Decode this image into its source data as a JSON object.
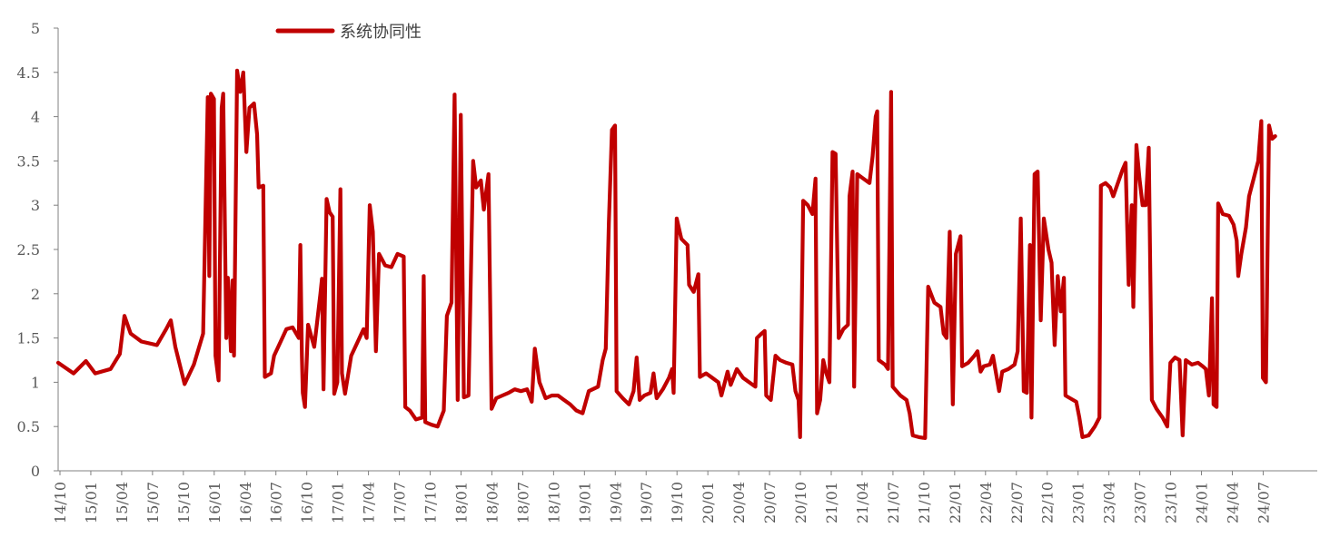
{
  "chart_data": {
    "type": "line",
    "series_color": "#c00000",
    "axis_color": "#808080",
    "legend_position": "top-left",
    "grid": false,
    "ylim": [
      0,
      5
    ],
    "yticks": [
      "0",
      "0.5",
      "1",
      "1.5",
      "2",
      "2.5",
      "3",
      "3.5",
      "4",
      "4.5",
      "5"
    ],
    "xtick_labels": [
      "14/10",
      "15/01",
      "15/04",
      "15/07",
      "15/10",
      "16/01",
      "16/04",
      "16/07",
      "16/10",
      "17/01",
      "17/04",
      "17/07",
      "17/10",
      "18/01",
      "18/04",
      "18/07",
      "18/10",
      "19/01",
      "19/04",
      "19/07",
      "19/10",
      "20/01",
      "20/04",
      "20/07",
      "20/10",
      "21/01",
      "21/04",
      "21/07",
      "21/10",
      "22/01",
      "22/04",
      "22/07",
      "22/10",
      "23/01",
      "23/04",
      "23/07",
      "23/10",
      "24/01",
      "24/04",
      "24/07"
    ],
    "series": [
      {
        "name": "系统协同性",
        "points": [
          [
            0,
            1.22
          ],
          [
            0.5,
            1.1
          ],
          [
            0.9,
            1.24
          ],
          [
            1.2,
            1.1
          ],
          [
            1.7,
            1.15
          ],
          [
            2.0,
            1.32
          ],
          [
            2.15,
            1.75
          ],
          [
            2.35,
            1.55
          ],
          [
            2.7,
            1.46
          ],
          [
            3.2,
            1.42
          ],
          [
            3.5,
            1.6
          ],
          [
            3.65,
            1.7
          ],
          [
            3.8,
            1.4
          ],
          [
            4.1,
            0.98
          ],
          [
            4.4,
            1.2
          ],
          [
            4.7,
            1.55
          ],
          [
            4.85,
            4.22
          ],
          [
            4.9,
            2.2
          ],
          [
            4.95,
            4.26
          ],
          [
            5.05,
            4.2
          ],
          [
            5.1,
            1.3
          ],
          [
            5.2,
            1.02
          ],
          [
            5.3,
            4.1
          ],
          [
            5.35,
            4.26
          ],
          [
            5.45,
            1.5
          ],
          [
            5.5,
            2.18
          ],
          [
            5.6,
            1.35
          ],
          [
            5.65,
            2.15
          ],
          [
            5.7,
            1.3
          ],
          [
            5.8,
            4.52
          ],
          [
            5.9,
            4.28
          ],
          [
            6.0,
            4.5
          ],
          [
            6.1,
            3.6
          ],
          [
            6.2,
            4.1
          ],
          [
            6.35,
            4.15
          ],
          [
            6.45,
            3.8
          ],
          [
            6.5,
            3.2
          ],
          [
            6.65,
            3.22
          ],
          [
            6.7,
            1.06
          ],
          [
            6.9,
            1.1
          ],
          [
            7.0,
            1.3
          ],
          [
            7.2,
            1.45
          ],
          [
            7.4,
            1.6
          ],
          [
            7.6,
            1.62
          ],
          [
            7.8,
            1.5
          ],
          [
            7.85,
            2.55
          ],
          [
            7.9,
            1.3
          ],
          [
            7.93,
            0.88
          ],
          [
            8.0,
            0.72
          ],
          [
            8.1,
            1.65
          ],
          [
            8.3,
            1.4
          ],
          [
            8.5,
            2.0
          ],
          [
            8.55,
            2.17
          ],
          [
            8.6,
            0.92
          ],
          [
            8.7,
            3.07
          ],
          [
            8.8,
            2.92
          ],
          [
            8.9,
            2.87
          ],
          [
            8.95,
            0.87
          ],
          [
            9.05,
            1.0
          ],
          [
            9.15,
            3.18
          ],
          [
            9.2,
            1.1
          ],
          [
            9.3,
            0.87
          ],
          [
            9.5,
            1.3
          ],
          [
            9.7,
            1.45
          ],
          [
            9.9,
            1.6
          ],
          [
            10.0,
            1.5
          ],
          [
            10.1,
            3.0
          ],
          [
            10.2,
            2.7
          ],
          [
            10.3,
            1.35
          ],
          [
            10.4,
            2.45
          ],
          [
            10.6,
            2.32
          ],
          [
            10.8,
            2.3
          ],
          [
            11.0,
            2.45
          ],
          [
            11.2,
            2.42
          ],
          [
            11.25,
            0.72
          ],
          [
            11.4,
            0.68
          ],
          [
            11.6,
            0.58
          ],
          [
            11.8,
            0.6
          ],
          [
            11.85,
            2.2
          ],
          [
            11.9,
            0.55
          ],
          [
            12.1,
            0.52
          ],
          [
            12.3,
            0.5
          ],
          [
            12.5,
            0.68
          ],
          [
            12.6,
            1.75
          ],
          [
            12.75,
            1.9
          ],
          [
            12.85,
            4.25
          ],
          [
            12.95,
            0.8
          ],
          [
            13.05,
            4.02
          ],
          [
            13.15,
            0.83
          ],
          [
            13.3,
            0.85
          ],
          [
            13.45,
            3.5
          ],
          [
            13.55,
            3.2
          ],
          [
            13.7,
            3.28
          ],
          [
            13.8,
            2.95
          ],
          [
            13.95,
            3.35
          ],
          [
            14.05,
            0.7
          ],
          [
            14.2,
            0.82
          ],
          [
            14.4,
            0.85
          ],
          [
            14.6,
            0.88
          ],
          [
            14.8,
            0.92
          ],
          [
            15.0,
            0.9
          ],
          [
            15.2,
            0.92
          ],
          [
            15.35,
            0.78
          ],
          [
            15.45,
            1.38
          ],
          [
            15.6,
            1.0
          ],
          [
            15.8,
            0.82
          ],
          [
            16.0,
            0.85
          ],
          [
            16.2,
            0.85
          ],
          [
            16.4,
            0.8
          ],
          [
            16.6,
            0.75
          ],
          [
            16.8,
            0.68
          ],
          [
            17.0,
            0.65
          ],
          [
            17.2,
            0.9
          ],
          [
            17.5,
            0.95
          ],
          [
            17.65,
            1.25
          ],
          [
            17.75,
            1.38
          ],
          [
            17.85,
            2.8
          ],
          [
            17.95,
            3.85
          ],
          [
            18.05,
            3.9
          ],
          [
            18.1,
            0.9
          ],
          [
            18.3,
            0.82
          ],
          [
            18.5,
            0.75
          ],
          [
            18.65,
            0.9
          ],
          [
            18.75,
            1.28
          ],
          [
            18.85,
            0.8
          ],
          [
            19.0,
            0.85
          ],
          [
            19.2,
            0.88
          ],
          [
            19.3,
            1.1
          ],
          [
            19.4,
            0.82
          ],
          [
            19.6,
            0.92
          ],
          [
            19.8,
            1.05
          ],
          [
            19.9,
            1.15
          ],
          [
            19.95,
            0.88
          ],
          [
            20.05,
            2.85
          ],
          [
            20.2,
            2.62
          ],
          [
            20.4,
            2.55
          ],
          [
            20.45,
            2.1
          ],
          [
            20.6,
            2.02
          ],
          [
            20.75,
            2.22
          ],
          [
            20.8,
            1.06
          ],
          [
            21.0,
            1.1
          ],
          [
            21.2,
            1.05
          ],
          [
            21.4,
            1.0
          ],
          [
            21.5,
            0.85
          ],
          [
            21.7,
            1.12
          ],
          [
            21.8,
            0.97
          ],
          [
            22.0,
            1.15
          ],
          [
            22.2,
            1.05
          ],
          [
            22.4,
            1.0
          ],
          [
            22.6,
            0.95
          ],
          [
            22.65,
            1.5
          ],
          [
            22.8,
            1.55
          ],
          [
            22.9,
            1.58
          ],
          [
            22.95,
            0.85
          ],
          [
            23.1,
            0.8
          ],
          [
            23.25,
            1.3
          ],
          [
            23.4,
            1.25
          ],
          [
            23.6,
            1.22
          ],
          [
            23.8,
            1.2
          ],
          [
            23.9,
            0.9
          ],
          [
            24.0,
            0.8
          ],
          [
            24.05,
            0.38
          ],
          [
            24.15,
            3.05
          ],
          [
            24.3,
            3.0
          ],
          [
            24.45,
            2.9
          ],
          [
            24.55,
            3.3
          ],
          [
            24.6,
            0.65
          ],
          [
            24.7,
            0.8
          ],
          [
            24.8,
            1.25
          ],
          [
            24.9,
            1.1
          ],
          [
            25.0,
            1.0
          ],
          [
            25.1,
            3.6
          ],
          [
            25.2,
            3.58
          ],
          [
            25.3,
            1.5
          ],
          [
            25.45,
            1.6
          ],
          [
            25.6,
            1.65
          ],
          [
            25.65,
            3.1
          ],
          [
            25.75,
            3.38
          ],
          [
            25.8,
            0.95
          ],
          [
            25.9,
            3.35
          ],
          [
            26.1,
            3.3
          ],
          [
            26.3,
            3.25
          ],
          [
            26.4,
            3.55
          ],
          [
            26.5,
            4.0
          ],
          [
            26.55,
            4.06
          ],
          [
            26.6,
            1.25
          ],
          [
            26.8,
            1.2
          ],
          [
            26.9,
            1.15
          ],
          [
            27.0,
            4.28
          ],
          [
            27.05,
            0.95
          ],
          [
            27.3,
            0.85
          ],
          [
            27.5,
            0.8
          ],
          [
            27.6,
            0.65
          ],
          [
            27.7,
            0.4
          ],
          [
            27.9,
            0.38
          ],
          [
            28.1,
            0.37
          ],
          [
            28.2,
            2.08
          ],
          [
            28.4,
            1.9
          ],
          [
            28.6,
            1.85
          ],
          [
            28.7,
            1.55
          ],
          [
            28.8,
            1.5
          ],
          [
            28.9,
            2.7
          ],
          [
            29.0,
            0.75
          ],
          [
            29.1,
            2.45
          ],
          [
            29.25,
            2.65
          ],
          [
            29.3,
            1.18
          ],
          [
            29.5,
            1.22
          ],
          [
            29.7,
            1.3
          ],
          [
            29.8,
            1.35
          ],
          [
            29.9,
            1.12
          ],
          [
            30.0,
            1.18
          ],
          [
            30.2,
            1.2
          ],
          [
            30.3,
            1.3
          ],
          [
            30.4,
            1.1
          ],
          [
            30.5,
            0.9
          ],
          [
            30.6,
            1.12
          ],
          [
            30.8,
            1.15
          ],
          [
            31.0,
            1.2
          ],
          [
            31.1,
            1.35
          ],
          [
            31.2,
            2.85
          ],
          [
            31.3,
            0.9
          ],
          [
            31.4,
            0.88
          ],
          [
            31.5,
            2.55
          ],
          [
            31.55,
            0.6
          ],
          [
            31.65,
            3.35
          ],
          [
            31.75,
            3.38
          ],
          [
            31.85,
            1.7
          ],
          [
            31.95,
            2.85
          ],
          [
            32.1,
            2.5
          ],
          [
            32.2,
            2.35
          ],
          [
            32.3,
            1.42
          ],
          [
            32.4,
            2.2
          ],
          [
            32.5,
            1.8
          ],
          [
            32.6,
            2.18
          ],
          [
            32.65,
            0.85
          ],
          [
            32.8,
            0.82
          ],
          [
            33.0,
            0.78
          ],
          [
            33.1,
            0.6
          ],
          [
            33.2,
            0.38
          ],
          [
            33.4,
            0.4
          ],
          [
            33.6,
            0.5
          ],
          [
            33.75,
            0.6
          ],
          [
            33.8,
            3.22
          ],
          [
            33.95,
            3.25
          ],
          [
            34.1,
            3.2
          ],
          [
            34.2,
            3.1
          ],
          [
            34.35,
            3.25
          ],
          [
            34.5,
            3.4
          ],
          [
            34.6,
            3.48
          ],
          [
            34.7,
            2.1
          ],
          [
            34.8,
            3.0
          ],
          [
            34.85,
            1.85
          ],
          [
            34.95,
            3.68
          ],
          [
            35.05,
            3.3
          ],
          [
            35.15,
            3.0
          ],
          [
            35.25,
            3.0
          ],
          [
            35.35,
            3.65
          ],
          [
            35.45,
            0.8
          ],
          [
            35.6,
            0.7
          ],
          [
            35.8,
            0.6
          ],
          [
            35.95,
            0.5
          ],
          [
            36.05,
            1.22
          ],
          [
            36.2,
            1.28
          ],
          [
            36.35,
            1.25
          ],
          [
            36.45,
            0.4
          ],
          [
            36.55,
            1.25
          ],
          [
            36.75,
            1.2
          ],
          [
            36.95,
            1.22
          ],
          [
            37.1,
            1.18
          ],
          [
            37.2,
            1.15
          ],
          [
            37.3,
            0.85
          ],
          [
            37.4,
            1.95
          ],
          [
            37.45,
            0.75
          ],
          [
            37.55,
            0.72
          ],
          [
            37.6,
            3.02
          ],
          [
            37.75,
            2.9
          ],
          [
            37.95,
            2.88
          ],
          [
            38.1,
            2.78
          ],
          [
            38.2,
            2.6
          ],
          [
            38.25,
            2.2
          ],
          [
            38.35,
            2.45
          ],
          [
            38.5,
            2.75
          ],
          [
            38.6,
            3.1
          ],
          [
            38.75,
            3.3
          ],
          [
            38.9,
            3.5
          ],
          [
            39.0,
            3.95
          ],
          [
            39.05,
            1.05
          ],
          [
            39.15,
            1.0
          ],
          [
            39.25,
            3.9
          ],
          [
            39.35,
            3.75
          ],
          [
            39.45,
            3.78
          ]
        ]
      }
    ]
  }
}
